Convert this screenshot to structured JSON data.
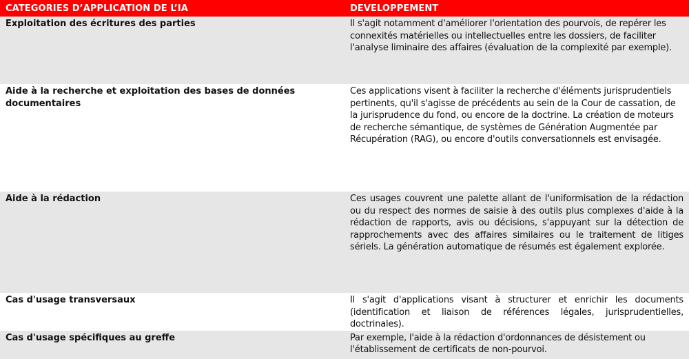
{
  "table": {
    "headers": [
      "CATEGORIES D’APPLICATION DE L’IA",
      "DEVELOPPEMENT"
    ],
    "rows": [
      {
        "category": "Exploitation des écritures des parties",
        "development": "Il s'agit notamment d'améliorer l'orientation des pourvois, de repérer les connexités matérielles ou intellectuelles entre les dossiers, de faciliter l'analyse liminaire des affaires (évaluation de la complexité par exemple)."
      },
      {
        "category": "Aide à la recherche et exploitation des bases de données documentaires",
        "development": "Ces applications visent à faciliter la recherche d'éléments jurisprudentiels pertinents, qu'il s'agisse de précédents au sein de la Cour de cassation, de la jurisprudence du fond, ou encore de la doctrine. La création de moteurs de recherche sémantique, de systèmes de Génération Augmentée par Récupération (RAG), ou encore d'outils conversationnels est envisagée."
      },
      {
        "category": "Aide à la rédaction",
        "development": "Ces usages couvrent une palette allant de l'uniformisation de la rédaction ou du respect des normes de saisie à des outils plus complexes d'aide à la rédaction de rapports, avis ou décisions, s'appuyant sur la détection de rapprochements avec des affaires similaires ou le traitement de litiges sériels. La génération automatique de résumés est également explorée."
      },
      {
        "category": "Cas d'usage transversaux",
        "development": "Il s'agit d'applications visant à structurer et enrichir les documents (identification et liaison de références légales, jurisprudentielles, doctrinales)."
      },
      {
        "category": "Cas d'usage spécifiques au greffe",
        "development": "Par exemple, l'aide à la rédaction d'ordonnances de désistement ou l'établissement de certificats de non-pourvoi."
      }
    ]
  },
  "colors": {
    "header_bg": "#ff0000",
    "stripe": "#e6e6e6"
  }
}
